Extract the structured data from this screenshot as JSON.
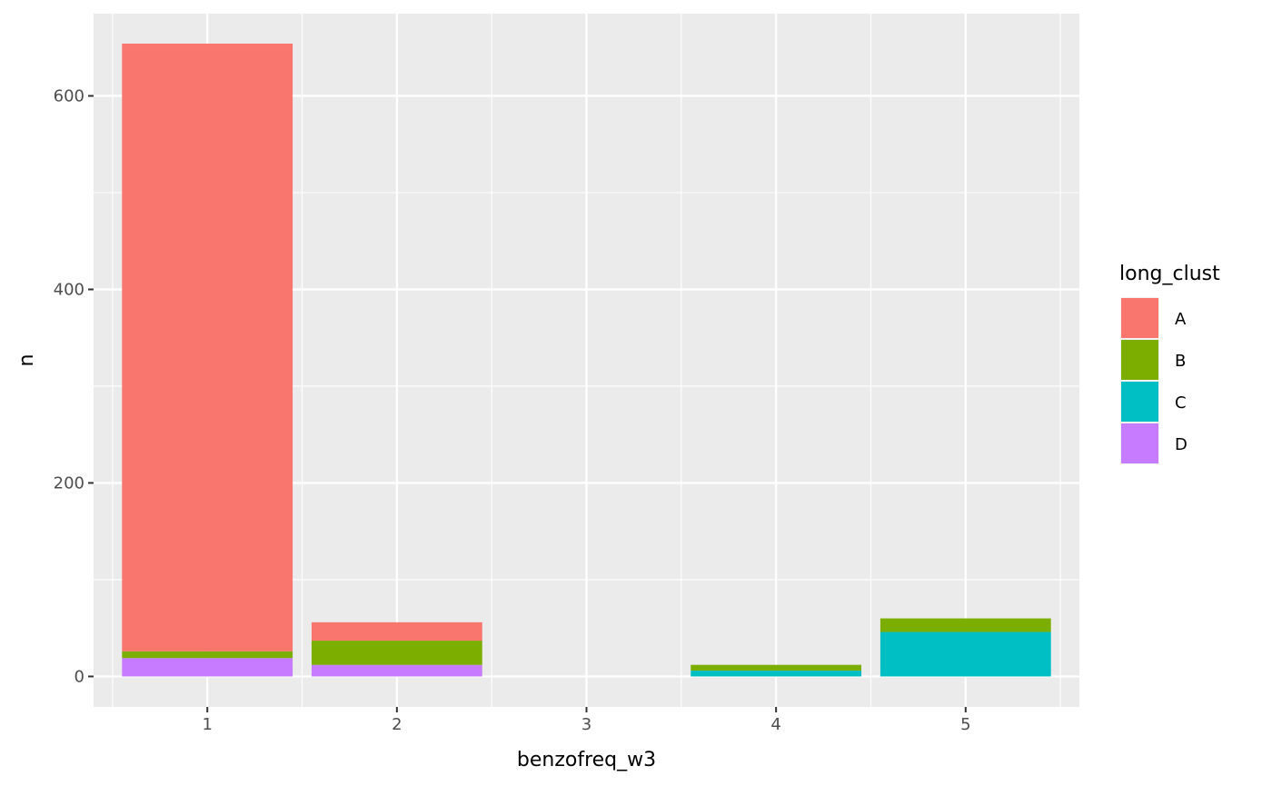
{
  "chart_data": {
    "type": "bar",
    "stacked": true,
    "xlabel": "benzofreq_w3",
    "ylabel": "n",
    "categories": [
      "1",
      "2",
      "3",
      "4",
      "5"
    ],
    "x_tick_labels": [
      "1",
      "2",
      "3",
      "4",
      "5"
    ],
    "y_tick_labels": [
      "0",
      "200",
      "400",
      "600"
    ],
    "y_ticks": [
      0,
      200,
      400,
      600
    ],
    "ylim": [
      -31.5,
      685
    ],
    "grid": true,
    "legend": {
      "title": "long_clust",
      "position": "right",
      "entries": [
        "A",
        "B",
        "C",
        "D"
      ]
    },
    "series": [
      {
        "name": "A",
        "color": "#F8766D",
        "values": [
          628,
          19,
          0,
          0,
          0
        ]
      },
      {
        "name": "B",
        "color": "#7CAE00",
        "values": [
          7,
          25,
          0,
          6,
          14
        ]
      },
      {
        "name": "C",
        "color": "#00BFC4",
        "values": [
          0,
          0,
          0,
          6,
          46
        ]
      },
      {
        "name": "D",
        "color": "#C77CFF",
        "values": [
          19,
          12,
          0,
          0,
          0
        ]
      }
    ],
    "stack_order_bottom_to_top": [
      "D",
      "C",
      "B",
      "A"
    ]
  }
}
